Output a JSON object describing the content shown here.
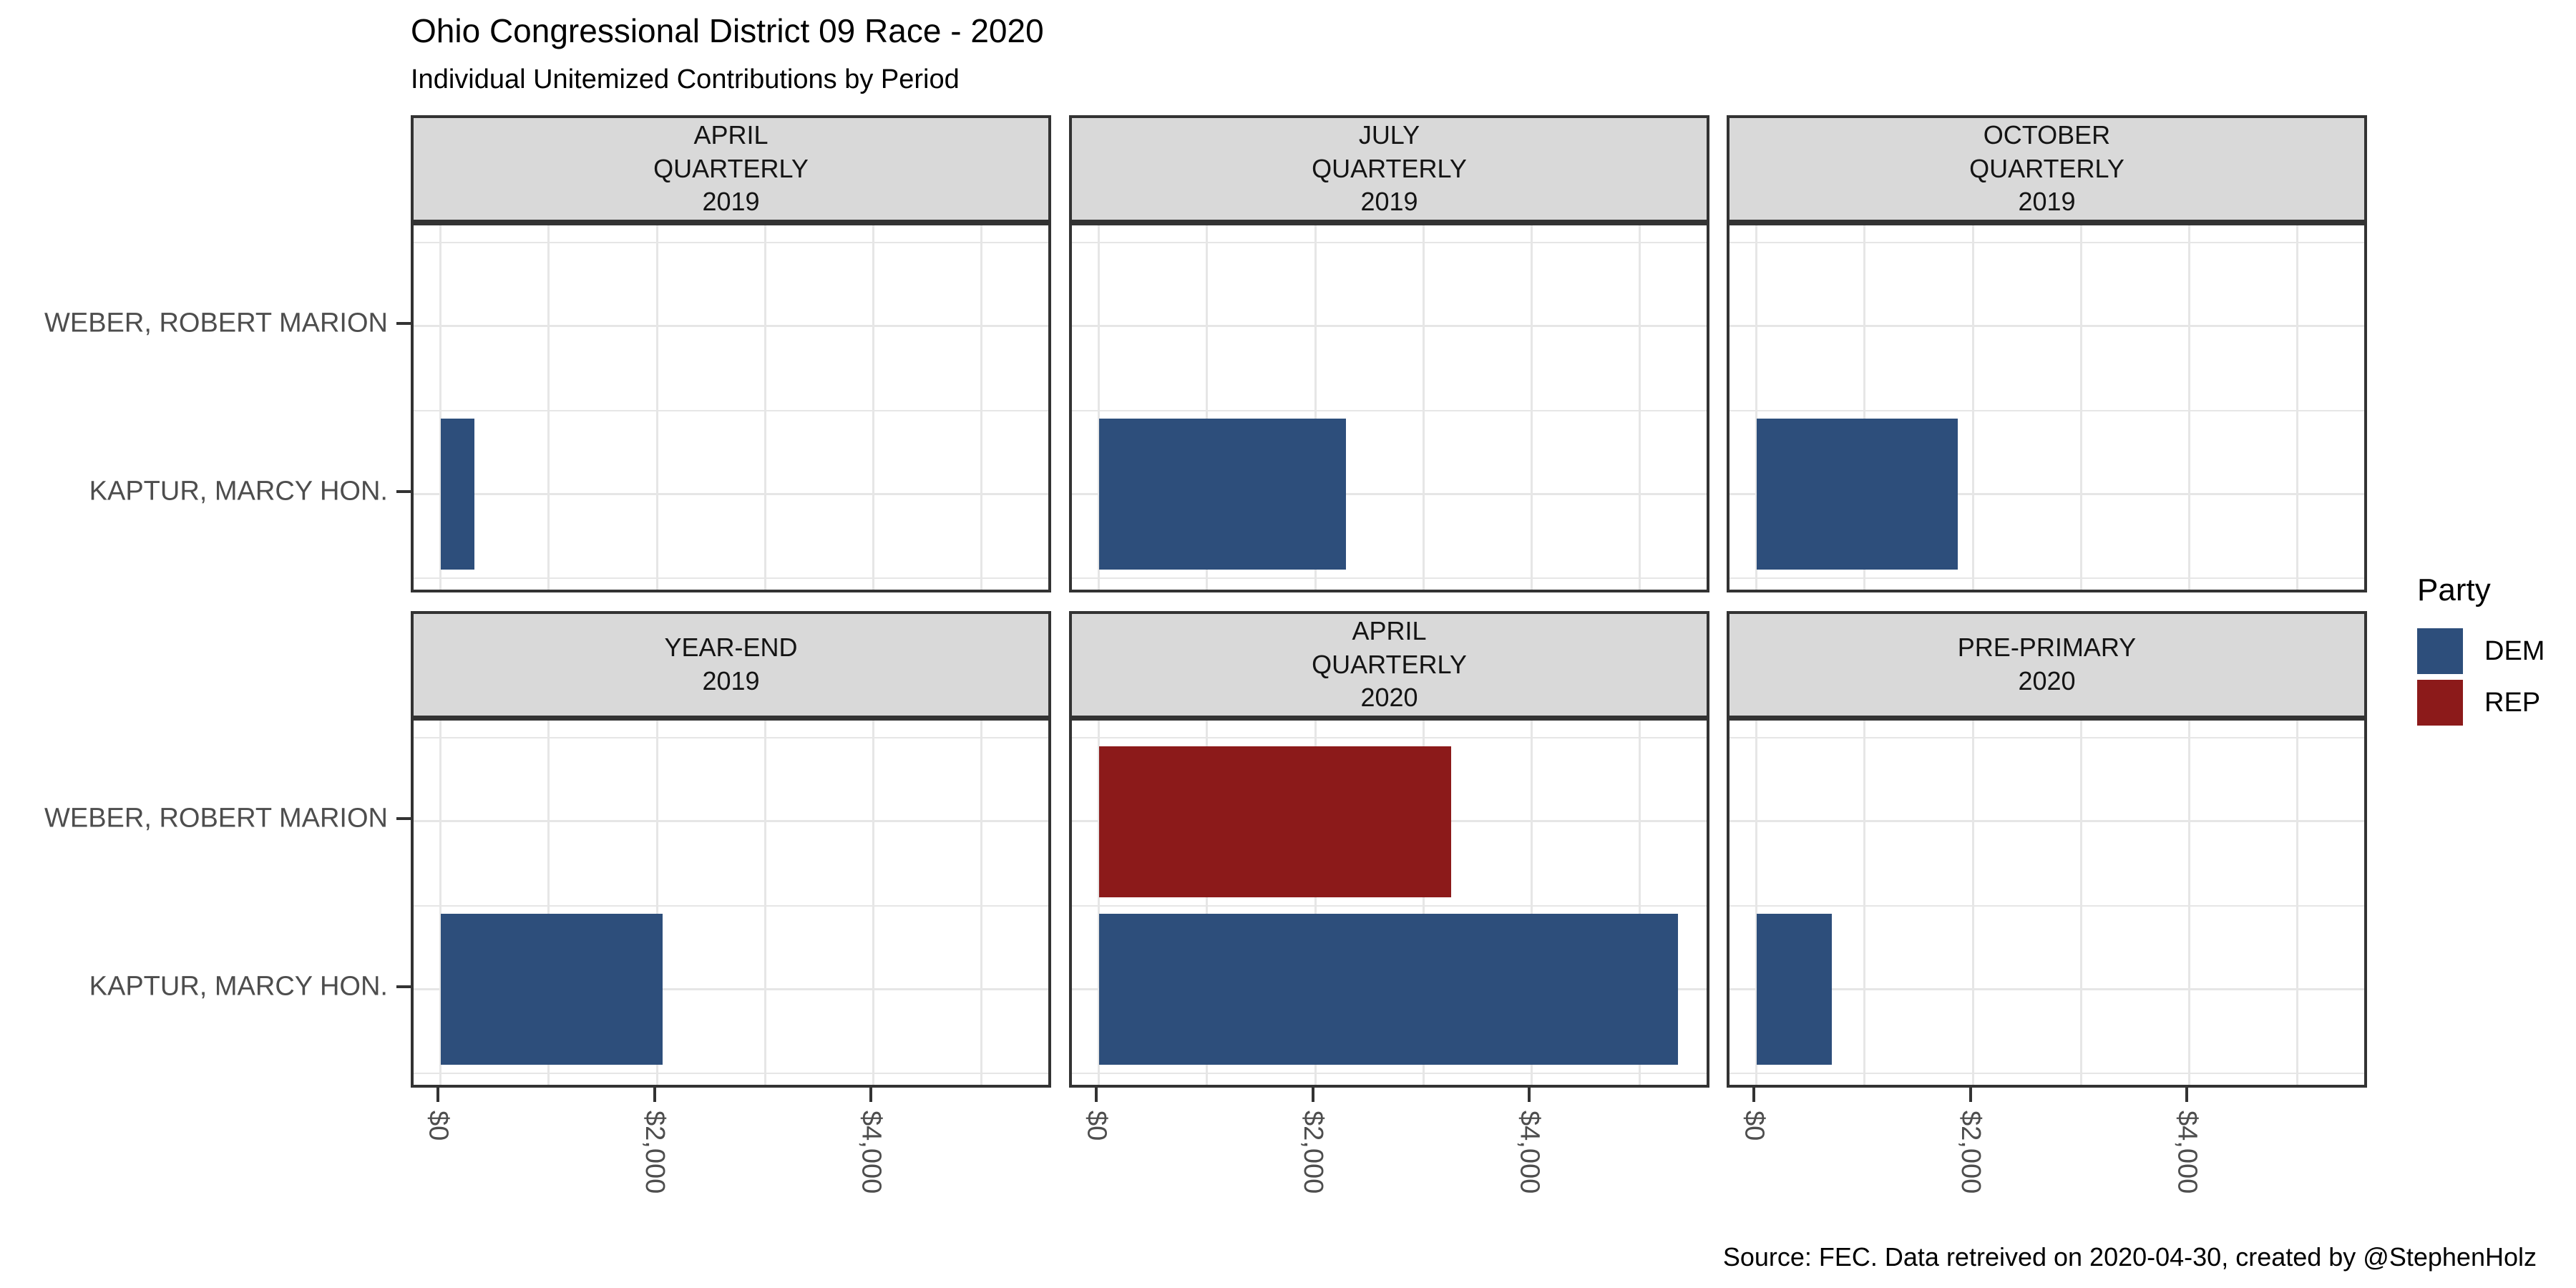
{
  "title": "Ohio Congressional District 09 Race - 2020",
  "subtitle": "Individual Unitemized Contributions by Period",
  "caption": "Source: FEC. Data retreived on 2020-04-30, created by @StephenHolz",
  "chart_data": {
    "type": "bar",
    "orientation": "horizontal",
    "grid": true,
    "facet_layout": "3 columns x 2 rows",
    "y_categories": [
      "WEBER, ROBERT MARION",
      "KAPTUR, MARCY HON."
    ],
    "x_axis": {
      "tick_labels": [
        "$0",
        "$2,000",
        "$4,000"
      ],
      "tick_values": [
        0,
        2000,
        4000
      ],
      "minor_step": 1000,
      "xlim": [
        0,
        5680
      ],
      "tick_label_rotation": "90deg clockwise"
    },
    "colors": {
      "DEM": "#2D4E7B",
      "REP": "#8C1A1A"
    },
    "legend": {
      "title": "Party",
      "position": "right",
      "items": [
        {
          "label": "DEM",
          "color": "#2D4E7B"
        },
        {
          "label": "REP",
          "color": "#8C1A1A"
        }
      ]
    },
    "facets": [
      {
        "label": "APRIL\nQUARTERLY\n2019",
        "bars": [
          {
            "candidate": "KAPTUR, MARCY HON.",
            "party": "DEM",
            "value": 310
          }
        ]
      },
      {
        "label": "JULY\nQUARTERLY\n2019",
        "bars": [
          {
            "candidate": "KAPTUR, MARCY HON.",
            "party": "DEM",
            "value": 2280
          }
        ]
      },
      {
        "label": "OCTOBER\nQUARTERLY\n2019",
        "bars": [
          {
            "candidate": "KAPTUR, MARCY HON.",
            "party": "DEM",
            "value": 1860
          }
        ]
      },
      {
        "label": "YEAR-END\n2019",
        "bars": [
          {
            "candidate": "KAPTUR, MARCY HON.",
            "party": "DEM",
            "value": 2050
          }
        ]
      },
      {
        "label": "APRIL\nQUARTERLY\n2020",
        "bars": [
          {
            "candidate": "WEBER, ROBERT MARION",
            "party": "REP",
            "value": 3250
          },
          {
            "candidate": "KAPTUR, MARCY HON.",
            "party": "DEM",
            "value": 5350
          }
        ]
      },
      {
        "label": "PRE-PRIMARY\n2020",
        "bars": [
          {
            "candidate": "KAPTUR, MARCY HON.",
            "party": "DEM",
            "value": 695
          }
        ]
      }
    ]
  }
}
